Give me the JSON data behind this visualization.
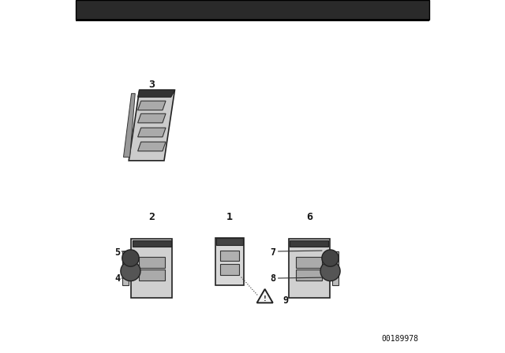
{
  "bg_color": "#ffffff",
  "border_color": "#000000",
  "part_number": "00189978",
  "top_bar_color": "#2a2a2a"
}
